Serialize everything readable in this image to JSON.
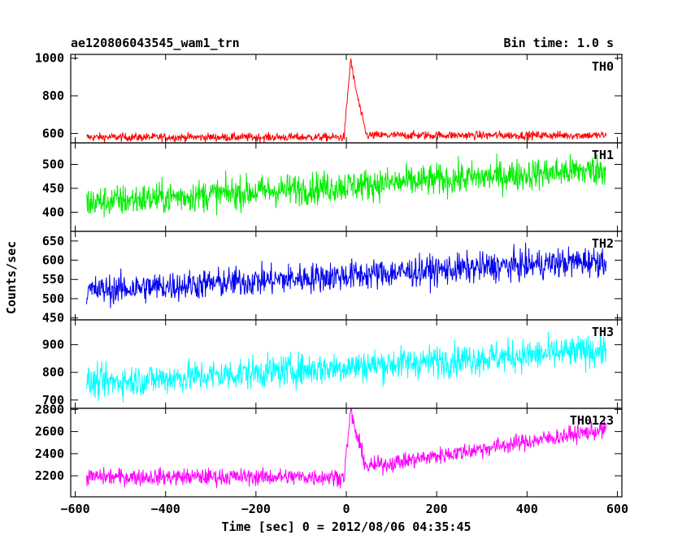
{
  "chart_data": {
    "type": "line",
    "title_left": "ae120806043545_wam1_trn",
    "title_right": "Bin time: 1.0 s",
    "xlabel": "Time [sec] 0 = 2012/08/06 04:35:45",
    "ylabel": "Counts/sec",
    "xlim": [
      -610,
      610
    ],
    "xticks": [
      -600,
      -400,
      -200,
      0,
      200,
      400,
      600
    ],
    "x_range": [
      -575,
      575
    ],
    "panels": [
      {
        "name": "TH0",
        "color": "#ff0000",
        "ylim": [
          550,
          1020
        ],
        "yticks": [
          600,
          800,
          1000
        ],
        "baseline_start": 580,
        "baseline_end": 590,
        "noise": 16,
        "peak": {
          "x": 10,
          "value": 1000
        },
        "post_drop": 590
      },
      {
        "name": "TH1",
        "color": "#00ee00",
        "ylim": [
          360,
          545
        ],
        "yticks": [
          400,
          450,
          500
        ],
        "baseline_start": 420,
        "baseline_end": 490,
        "noise": 24
      },
      {
        "name": "TH2",
        "color": "#0000ee",
        "ylim": [
          445,
          675
        ],
        "yticks": [
          450,
          500,
          550,
          600,
          650
        ],
        "baseline_start": 520,
        "baseline_end": 600,
        "noise": 28
      },
      {
        "name": "TH3",
        "color": "#00ffff",
        "ylim": [
          670,
          990
        ],
        "yticks": [
          700,
          800,
          900
        ],
        "baseline_start": 760,
        "baseline_end": 880,
        "noise": 42
      },
      {
        "name": "TH0123",
        "color": "#ff00ff",
        "ylim": [
          2010,
          2810
        ],
        "yticks": [
          2200,
          2400,
          2600,
          2800
        ],
        "baseline_start": 2190,
        "baseline_end": 2620,
        "noise": 55,
        "peak": {
          "x": 10,
          "value": 2800
        },
        "post_drop": 2280
      }
    ]
  }
}
